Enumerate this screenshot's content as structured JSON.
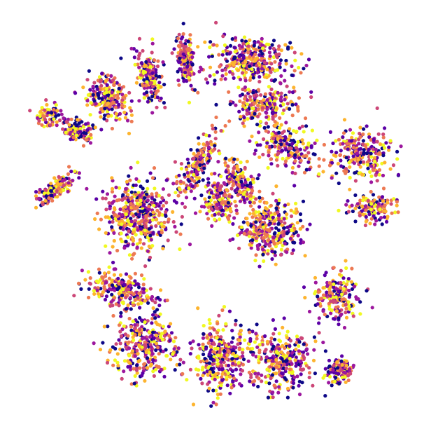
{
  "chart_data": {
    "type": "scatter",
    "title": "",
    "xlabel": "",
    "ylabel": "",
    "axes_visible": false,
    "grid": false,
    "legend": "none",
    "xlim": [
      -100,
      100
    ],
    "ylim": [
      -100,
      100
    ],
    "colormap": "plasma",
    "palette": [
      "#0d0887",
      "#5c01a6",
      "#9c179e",
      "#cc4778",
      "#ed7953",
      "#fdb42f",
      "#f0f921"
    ],
    "marker": "circle",
    "point_count_approx": 4200,
    "clusters": [
      {
        "center": [
          -80,
          13
        ],
        "spread": [
          10,
          4
        ],
        "count": 160,
        "rotation": 35
      },
      {
        "center": [
          -70,
          43
        ],
        "spread": [
          7,
          5
        ],
        "count": 110,
        "rotation": -20
      },
      {
        "center": [
          -53,
          59
        ],
        "spread": [
          9,
          11
        ],
        "count": 220,
        "rotation": 20
      },
      {
        "center": [
          -33,
          69
        ],
        "spread": [
          5,
          12
        ],
        "count": 190,
        "rotation": 15
      },
      {
        "center": [
          -15,
          78
        ],
        "spread": [
          4,
          12
        ],
        "count": 170,
        "rotation": 5
      },
      {
        "center": [
          -83,
          50
        ],
        "spread": [
          6,
          5
        ],
        "count": 70,
        "rotation": 0
      },
      {
        "center": [
          17,
          78
        ],
        "spread": [
          19,
          11
        ],
        "count": 320,
        "rotation": 0
      },
      {
        "center": [
          24,
          56
        ],
        "spread": [
          15,
          8
        ],
        "count": 200,
        "rotation": 10
      },
      {
        "center": [
          36,
          35
        ],
        "spread": [
          15,
          10
        ],
        "count": 200,
        "rotation": -20
      },
      {
        "center": [
          -9,
          25
        ],
        "spread": [
          5,
          19
        ],
        "count": 180,
        "rotation": -30
      },
      {
        "center": [
          12,
          17
        ],
        "spread": [
          6,
          12
        ],
        "count": 160,
        "rotation": 35
      },
      {
        "center": [
          1,
          7
        ],
        "spread": [
          8,
          9
        ],
        "count": 150,
        "rotation": 0
      },
      {
        "center": [
          -39,
          0
        ],
        "spread": [
          15,
          17
        ],
        "count": 450,
        "rotation": 0
      },
      {
        "center": [
          27,
          -8
        ],
        "spread": [
          15,
          13
        ],
        "count": 330,
        "rotation": 10
      },
      {
        "center": [
          -47,
          -38
        ],
        "spread": [
          15,
          8
        ],
        "count": 230,
        "rotation": -10
      },
      {
        "center": [
          -35,
          -66
        ],
        "spread": [
          15,
          16
        ],
        "count": 320,
        "rotation": 0
      },
      {
        "center": [
          3,
          -72
        ],
        "spread": [
          12,
          15
        ],
        "count": 320,
        "rotation": 0
      },
      {
        "center": [
          34,
          -74
        ],
        "spread": [
          14,
          14
        ],
        "count": 300,
        "rotation": 0
      },
      {
        "center": [
          62,
          -78
        ],
        "spread": [
          6,
          6
        ],
        "count": 110,
        "rotation": 0
      },
      {
        "center": [
          61,
          -42
        ],
        "spread": [
          10,
          12
        ],
        "count": 190,
        "rotation": 15
      },
      {
        "center": [
          74,
          30
        ],
        "spread": [
          14,
          12
        ],
        "count": 240,
        "rotation": 0
      },
      {
        "center": [
          79,
          3
        ],
        "spread": [
          11,
          6
        ],
        "count": 140,
        "rotation": 0
      }
    ]
  }
}
